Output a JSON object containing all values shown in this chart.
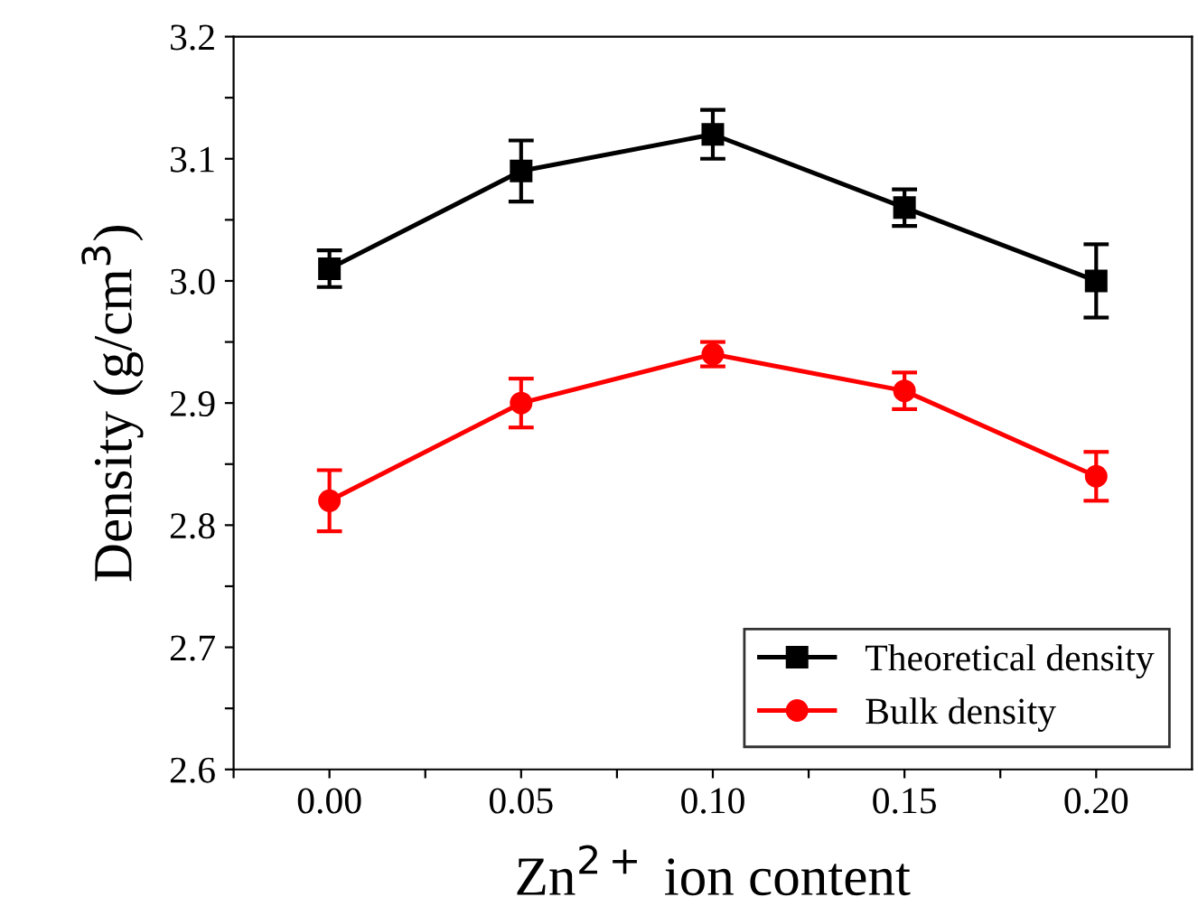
{
  "chart_data": {
    "type": "line",
    "xlabel": "Zn$^{2+}$ ion content",
    "ylabel": "Density (g/cm$^{3}$)",
    "x": [
      0.0,
      0.05,
      0.1,
      0.15,
      0.2
    ],
    "series": [
      {
        "name": "Theoretical density",
        "color": "#000000",
        "marker": "square",
        "values": [
          3.01,
          3.09,
          3.12,
          3.06,
          3.0
        ],
        "errors": [
          0.015,
          0.025,
          0.02,
          0.015,
          0.03
        ]
      },
      {
        "name": "Bulk density",
        "color": "#ff0000",
        "marker": "circle",
        "values": [
          2.82,
          2.9,
          2.94,
          2.91,
          2.84
        ],
        "errors": [
          0.025,
          0.02,
          0.01,
          0.015,
          0.02
        ]
      }
    ],
    "xlim": [
      -0.025,
      0.225
    ],
    "ylim": [
      2.6,
      3.2
    ],
    "xticks": [
      {
        "value": -0.025,
        "label": null
      },
      {
        "value": 0.0,
        "label": "0.00"
      },
      {
        "value": 0.025,
        "label": null
      },
      {
        "value": 0.05,
        "label": "0.05"
      },
      {
        "value": 0.075,
        "label": null
      },
      {
        "value": 0.1,
        "label": "0.10"
      },
      {
        "value": 0.125,
        "label": null
      },
      {
        "value": 0.15,
        "label": "0.15"
      },
      {
        "value": 0.175,
        "label": null
      },
      {
        "value": 0.2,
        "label": "0.20"
      }
    ],
    "yticks": [
      {
        "value": 2.6,
        "label": "2.6"
      },
      {
        "value": 2.65,
        "label": null
      },
      {
        "value": 2.7,
        "label": "2.7"
      },
      {
        "value": 2.75,
        "label": null
      },
      {
        "value": 2.8,
        "label": "2.8"
      },
      {
        "value": 2.85,
        "label": null
      },
      {
        "value": 2.9,
        "label": "2.9"
      },
      {
        "value": 2.95,
        "label": null
      },
      {
        "value": 3.0,
        "label": "3.0"
      },
      {
        "value": 3.05,
        "label": null
      },
      {
        "value": 3.1,
        "label": "3.1"
      },
      {
        "value": 3.15,
        "label": null
      },
      {
        "value": 3.2,
        "label": "3.2"
      }
    ],
    "grid": false,
    "legend": "bottom right",
    "line_style": "solid"
  }
}
